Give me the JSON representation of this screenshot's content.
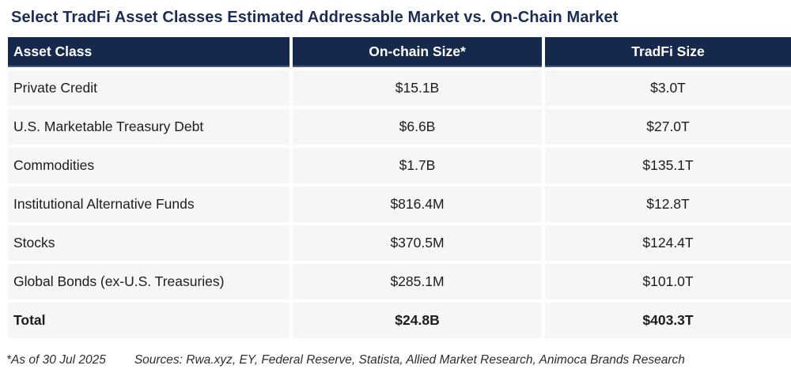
{
  "chart_data": {
    "type": "table",
    "title": "Select TradFi Asset Classes Estimated Addressable Market vs. On-Chain Market",
    "columns": [
      "Asset Class",
      "On-chain Size*",
      "TradFi Size"
    ],
    "rows": [
      [
        "Private Credit",
        "$15.1B",
        "$3.0T"
      ],
      [
        "U.S. Marketable Treasury Debt",
        "$6.6B",
        "$27.0T"
      ],
      [
        "Commodities",
        "$1.7B",
        "$135.1T"
      ],
      [
        "Institutional Alternative Funds",
        "$816.4M",
        "$12.8T"
      ],
      [
        "Stocks",
        "$370.5M",
        "$124.4T"
      ],
      [
        "Global Bonds (ex-U.S. Treasuries)",
        "$285.1M",
        "$101.0T"
      ]
    ],
    "total_row": [
      "Total",
      "$24.8B",
      "$403.3T"
    ],
    "footnote": "*As of 30 Jul 2025",
    "sources": "Sources: Rwa.xyz, EY, Federal Reserve, Statista, Allied Market Research, Animoca Brands Research"
  },
  "colors": {
    "header_bg": "#16294d",
    "header_border": "#3f5a85",
    "title_text": "#1b2d56",
    "row_bg": "#f5f6f7",
    "cell_text": "#1c1c20",
    "footer_text": "#2d2d2d"
  }
}
